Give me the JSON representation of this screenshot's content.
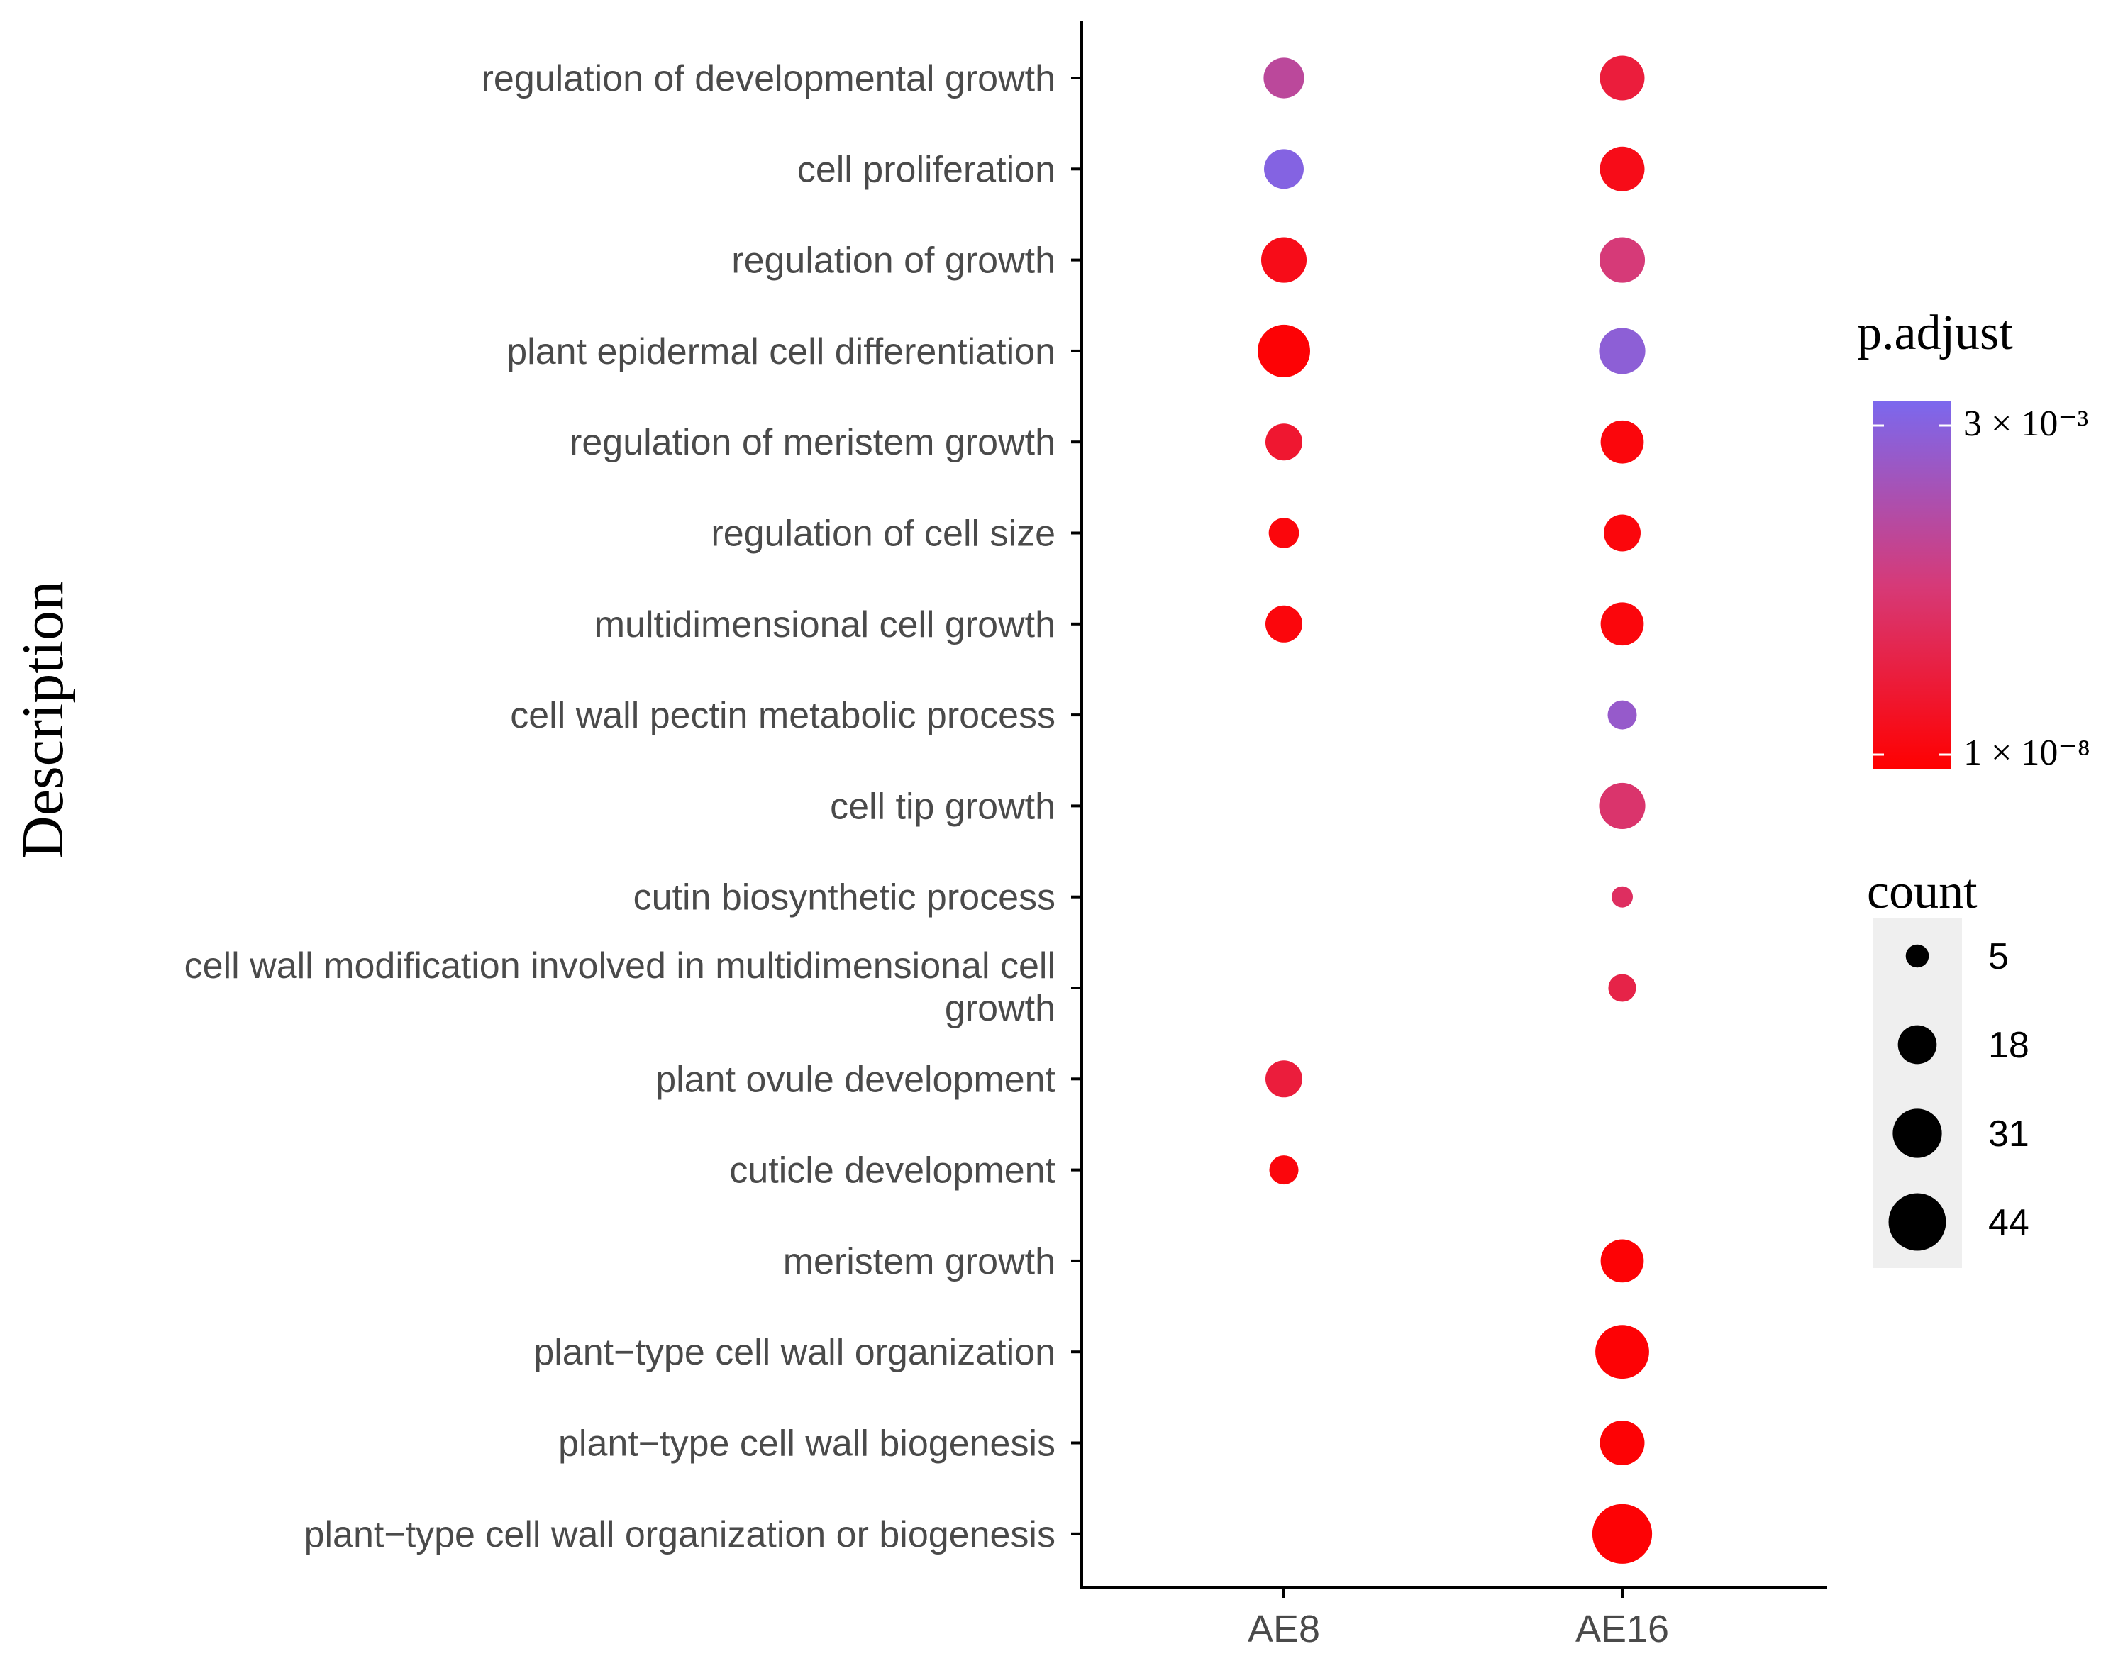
{
  "chart_data": {
    "type": "scatter",
    "subtype": "dot-plot",
    "ylabel": "Description",
    "xlabel": "",
    "columns": [
      "AE8",
      "AE16"
    ],
    "categories": [
      "regulation of developmental growth",
      "cell proliferation",
      "regulation of growth",
      "plant epidermal cell differentiation",
      "regulation of meristem growth",
      "regulation of cell size",
      "multidimensional cell growth",
      "cell wall pectin metabolic process",
      "cell tip growth",
      "cutin biosynthetic process",
      [
        "cell wall modification involved in multidimensional cell",
        "growth"
      ],
      "plant ovule development",
      "cuticle development",
      "meristem growth",
      "plant−type cell wall organization",
      "plant−type cell wall biogenesis",
      "plant−type cell wall organization or biogenesis"
    ],
    "points": [
      {
        "category": "regulation of developmental growth",
        "column": "AE8",
        "count": 20,
        "p_adjust_frac": 0.65
      },
      {
        "category": "regulation of developmental growth",
        "column": "AE16",
        "count": 25,
        "p_adjust_frac": 0.25
      },
      {
        "category": "cell proliferation",
        "column": "AE8",
        "count": 19,
        "p_adjust_frac": 0.95
      },
      {
        "category": "cell proliferation",
        "column": "AE16",
        "count": 25,
        "p_adjust_frac": 0.1
      },
      {
        "category": "regulation of growth",
        "column": "AE8",
        "count": 26,
        "p_adjust_frac": 0.1
      },
      {
        "category": "regulation of growth",
        "column": "AE16",
        "count": 26,
        "p_adjust_frac": 0.5
      },
      {
        "category": "plant epidermal cell differentiation",
        "column": "AE8",
        "count": 36,
        "p_adjust_frac": 0.02
      },
      {
        "category": "plant epidermal cell differentiation",
        "column": "AE16",
        "count": 27,
        "p_adjust_frac": 0.9
      },
      {
        "category": "regulation of meristem growth",
        "column": "AE8",
        "count": 16,
        "p_adjust_frac": 0.2
      },
      {
        "category": "regulation of meristem growth",
        "column": "AE16",
        "count": 23,
        "p_adjust_frac": 0.05
      },
      {
        "category": "regulation of cell size",
        "column": "AE8",
        "count": 10,
        "p_adjust_frac": 0.05
      },
      {
        "category": "regulation of cell size",
        "column": "AE16",
        "count": 16,
        "p_adjust_frac": 0.05
      },
      {
        "category": "multidimensional cell growth",
        "column": "AE8",
        "count": 16,
        "p_adjust_frac": 0.05
      },
      {
        "category": "multidimensional cell growth",
        "column": "AE16",
        "count": 23,
        "p_adjust_frac": 0.05
      },
      {
        "category": "cell wall pectin metabolic process",
        "column": "AE16",
        "count": 9,
        "p_adjust_frac": 0.85
      },
      {
        "category": "cell tip growth",
        "column": "AE16",
        "count": 27,
        "p_adjust_frac": 0.45
      },
      {
        "category": "cutin biosynthetic process",
        "column": "AE16",
        "count": 4,
        "p_adjust_frac": 0.4
      },
      {
        "category": "cell wall modification involved in multidimensional cell growth",
        "column": "AE16",
        "count": 8,
        "p_adjust_frac": 0.3
      },
      {
        "category": "plant ovule development",
        "column": "AE8",
        "count": 16,
        "p_adjust_frac": 0.25
      },
      {
        "category": "cuticle development",
        "column": "AE8",
        "count": 9,
        "p_adjust_frac": 0.05
      },
      {
        "category": "meristem growth",
        "column": "AE16",
        "count": 23,
        "p_adjust_frac": 0.02
      },
      {
        "category": "plant−type cell wall organization",
        "column": "AE16",
        "count": 38,
        "p_adjust_frac": 0.02
      },
      {
        "category": "plant−type cell wall biogenesis",
        "column": "AE16",
        "count": 25,
        "p_adjust_frac": 0.02
      },
      {
        "category": "plant−type cell wall organization or biogenesis",
        "column": "AE16",
        "count": 48,
        "p_adjust_frac": 0.02
      }
    ],
    "color_legend": {
      "title": "p.adjust",
      "high_label": "3 × 10⁻³",
      "low_label": "1 × 10⁻⁸",
      "high_color": "#7b68ee",
      "low_color": "#ff0000"
    },
    "size_legend": {
      "title": "count",
      "values": [
        5,
        18,
        31,
        44
      ],
      "labels": [
        "5",
        "18",
        "31",
        "44"
      ]
    }
  }
}
